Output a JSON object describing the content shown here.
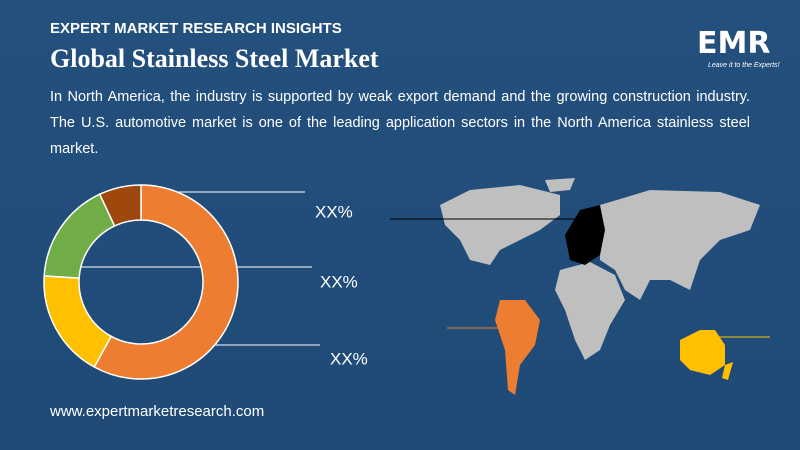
{
  "header": {
    "kicker": "EXPERT MARKET RESEARCH INSIGHTS",
    "title": "Global Stainless Steel Market"
  },
  "description": "In North America, the industry is supported by weak export demand and the growing construction industry. The U.S. automotive market is one of the leading application sectors in the North America stainless steel market.",
  "donut": {
    "values": [
      58,
      18,
      17,
      7
    ],
    "colors": [
      "#ed7d31",
      "#ffc000",
      "#70ad47",
      "#9e480e"
    ]
  },
  "labels": [
    "XX%",
    "XX%",
    "XX%"
  ],
  "logo": {
    "text": "EMR",
    "tagline": "Leave it to the Experts!"
  },
  "footer": {
    "url": "www.expertmarketresearch.com"
  }
}
